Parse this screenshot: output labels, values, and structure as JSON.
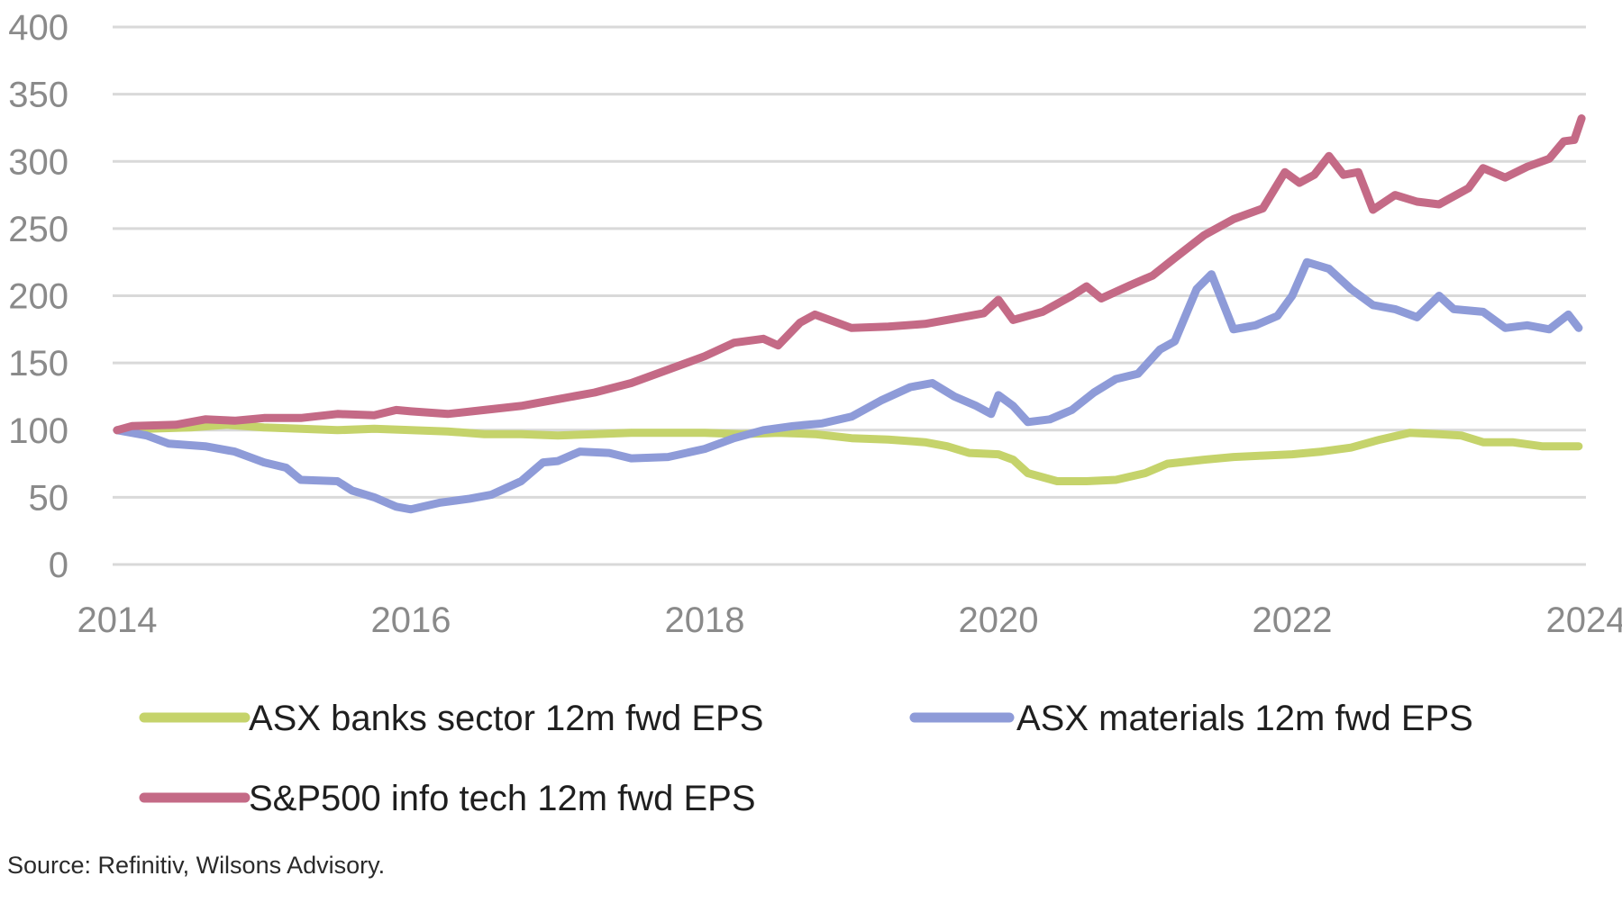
{
  "chart_data": {
    "type": "line",
    "title": "",
    "xlabel": "",
    "ylabel": "",
    "ylim": [
      0,
      400
    ],
    "xlim": [
      2014,
      2024
    ],
    "y_ticks": [
      "0",
      "50",
      "100",
      "150",
      "200",
      "250",
      "300",
      "350",
      "400"
    ],
    "x_ticks": [
      "2014",
      "2016",
      "2018",
      "2020",
      "2022",
      "2024"
    ],
    "grid": "horizontal",
    "legend_position": "bottom",
    "series": [
      {
        "name": "ASX banks sector 12m fwd EPS",
        "color": "#c5d36b",
        "points": [
          [
            2014.0,
            100
          ],
          [
            2014.2,
            101
          ],
          [
            2014.5,
            102
          ],
          [
            2014.75,
            104
          ],
          [
            2015.0,
            102
          ],
          [
            2015.25,
            101
          ],
          [
            2015.5,
            100
          ],
          [
            2015.75,
            101
          ],
          [
            2016.0,
            100
          ],
          [
            2016.25,
            99
          ],
          [
            2016.5,
            97
          ],
          [
            2016.75,
            97
          ],
          [
            2017.0,
            96
          ],
          [
            2017.25,
            97
          ],
          [
            2017.5,
            98
          ],
          [
            2017.75,
            98
          ],
          [
            2018.0,
            98
          ],
          [
            2018.25,
            97
          ],
          [
            2018.5,
            98
          ],
          [
            2018.75,
            97
          ],
          [
            2019.0,
            94
          ],
          [
            2019.25,
            93
          ],
          [
            2019.5,
            91
          ],
          [
            2019.65,
            88
          ],
          [
            2019.8,
            83
          ],
          [
            2020.0,
            82
          ],
          [
            2020.1,
            78
          ],
          [
            2020.2,
            68
          ],
          [
            2020.4,
            62
          ],
          [
            2020.6,
            62
          ],
          [
            2020.8,
            63
          ],
          [
            2021.0,
            68
          ],
          [
            2021.15,
            75
          ],
          [
            2021.4,
            78
          ],
          [
            2021.6,
            80
          ],
          [
            2021.8,
            81
          ],
          [
            2022.0,
            82
          ],
          [
            2022.2,
            84
          ],
          [
            2022.4,
            87
          ],
          [
            2022.6,
            93
          ],
          [
            2022.8,
            98
          ],
          [
            2023.0,
            97
          ],
          [
            2023.15,
            96
          ],
          [
            2023.3,
            91
          ],
          [
            2023.5,
            91
          ],
          [
            2023.7,
            88
          ],
          [
            2023.85,
            88
          ],
          [
            2023.95,
            88
          ]
        ]
      },
      {
        "name": "ASX materials 12m fwd EPS",
        "color": "#8e9bd8",
        "points": [
          [
            2014.0,
            100
          ],
          [
            2014.2,
            96
          ],
          [
            2014.35,
            90
          ],
          [
            2014.6,
            88
          ],
          [
            2014.8,
            84
          ],
          [
            2015.0,
            76
          ],
          [
            2015.15,
            72
          ],
          [
            2015.25,
            63
          ],
          [
            2015.5,
            62
          ],
          [
            2015.6,
            55
          ],
          [
            2015.75,
            50
          ],
          [
            2015.9,
            43
          ],
          [
            2016.0,
            41
          ],
          [
            2016.2,
            46
          ],
          [
            2016.4,
            49
          ],
          [
            2016.55,
            52
          ],
          [
            2016.75,
            62
          ],
          [
            2016.9,
            76
          ],
          [
            2017.0,
            77
          ],
          [
            2017.15,
            84
          ],
          [
            2017.35,
            83
          ],
          [
            2017.5,
            79
          ],
          [
            2017.75,
            80
          ],
          [
            2018.0,
            86
          ],
          [
            2018.2,
            94
          ],
          [
            2018.4,
            100
          ],
          [
            2018.6,
            103
          ],
          [
            2018.8,
            105
          ],
          [
            2019.0,
            110
          ],
          [
            2019.2,
            122
          ],
          [
            2019.4,
            132
          ],
          [
            2019.55,
            135
          ],
          [
            2019.7,
            125
          ],
          [
            2019.85,
            118
          ],
          [
            2019.95,
            112
          ],
          [
            2020.0,
            126
          ],
          [
            2020.1,
            118
          ],
          [
            2020.2,
            106
          ],
          [
            2020.35,
            108
          ],
          [
            2020.5,
            115
          ],
          [
            2020.65,
            128
          ],
          [
            2020.8,
            138
          ],
          [
            2020.95,
            142
          ],
          [
            2021.1,
            160
          ],
          [
            2021.2,
            166
          ],
          [
            2021.35,
            205
          ],
          [
            2021.45,
            216
          ],
          [
            2021.6,
            175
          ],
          [
            2021.75,
            178
          ],
          [
            2021.9,
            185
          ],
          [
            2022.0,
            200
          ],
          [
            2022.1,
            225
          ],
          [
            2022.25,
            220
          ],
          [
            2022.4,
            205
          ],
          [
            2022.55,
            193
          ],
          [
            2022.7,
            190
          ],
          [
            2022.85,
            184
          ],
          [
            2023.0,
            200
          ],
          [
            2023.1,
            190
          ],
          [
            2023.3,
            188
          ],
          [
            2023.45,
            176
          ],
          [
            2023.6,
            178
          ],
          [
            2023.75,
            175
          ],
          [
            2023.88,
            186
          ],
          [
            2023.95,
            176
          ]
        ]
      },
      {
        "name": "S&P500 info tech 12m fwd EPS",
        "color": "#c46a86",
        "points": [
          [
            2014.0,
            100
          ],
          [
            2014.1,
            103
          ],
          [
            2014.4,
            104
          ],
          [
            2014.6,
            108
          ],
          [
            2014.8,
            107
          ],
          [
            2015.0,
            109
          ],
          [
            2015.25,
            109
          ],
          [
            2015.5,
            112
          ],
          [
            2015.75,
            111
          ],
          [
            2015.9,
            115
          ],
          [
            2016.0,
            114
          ],
          [
            2016.25,
            112
          ],
          [
            2016.5,
            115
          ],
          [
            2016.75,
            118
          ],
          [
            2017.0,
            123
          ],
          [
            2017.25,
            128
          ],
          [
            2017.5,
            135
          ],
          [
            2017.75,
            145
          ],
          [
            2018.0,
            155
          ],
          [
            2018.2,
            165
          ],
          [
            2018.4,
            168
          ],
          [
            2018.5,
            163
          ],
          [
            2018.65,
            180
          ],
          [
            2018.75,
            186
          ],
          [
            2018.9,
            180
          ],
          [
            2019.0,
            176
          ],
          [
            2019.25,
            177
          ],
          [
            2019.5,
            179
          ],
          [
            2019.7,
            183
          ],
          [
            2019.9,
            187
          ],
          [
            2020.0,
            197
          ],
          [
            2020.1,
            182
          ],
          [
            2020.3,
            188
          ],
          [
            2020.5,
            200
          ],
          [
            2020.6,
            207
          ],
          [
            2020.7,
            198
          ],
          [
            2020.9,
            208
          ],
          [
            2021.05,
            215
          ],
          [
            2021.2,
            228
          ],
          [
            2021.4,
            245
          ],
          [
            2021.6,
            257
          ],
          [
            2021.8,
            265
          ],
          [
            2021.95,
            292
          ],
          [
            2022.05,
            284
          ],
          [
            2022.15,
            290
          ],
          [
            2022.25,
            304
          ],
          [
            2022.35,
            290
          ],
          [
            2022.45,
            292
          ],
          [
            2022.55,
            264
          ],
          [
            2022.7,
            275
          ],
          [
            2022.85,
            270
          ],
          [
            2023.0,
            268
          ],
          [
            2023.2,
            280
          ],
          [
            2023.3,
            295
          ],
          [
            2023.45,
            288
          ],
          [
            2023.6,
            296
          ],
          [
            2023.75,
            302
          ],
          [
            2023.85,
            315
          ],
          [
            2023.92,
            316
          ],
          [
            2023.97,
            332
          ]
        ]
      }
    ]
  },
  "source": "Source: Refinitiv, Wilsons Advisory."
}
